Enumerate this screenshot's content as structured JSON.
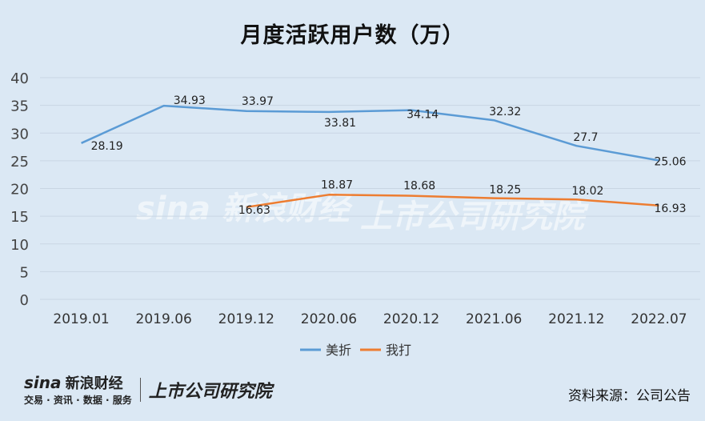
{
  "title": "月度活跃用户数（万）",
  "source": "资料来源：公司公告",
  "logo": {
    "sina": "sina",
    "sina_name": "新浪财经",
    "sina_tagline": "交易 · 资讯 · 数据 · 服务",
    "right": "上市公司研究院"
  },
  "colors": {
    "meizhe": "#5b9bd5",
    "wuda": "#ed7d31",
    "background": "#dbe8f4",
    "grid": "#c9d6e3"
  },
  "chart_data": {
    "type": "line",
    "title": "月度活跃用户数（万）",
    "categories": [
      "2019.01",
      "2019.06",
      "2019.12",
      "2020.06",
      "2020.12",
      "2021.06",
      "2021.12",
      "2022.07"
    ],
    "ylim": [
      0,
      40
    ],
    "yticks": [
      0,
      5,
      10,
      15,
      20,
      25,
      30,
      35,
      40
    ],
    "grid": true,
    "legend": "bottom",
    "series": [
      {
        "name": "美折",
        "color": "#5b9bd5",
        "values": [
          28.19,
          34.93,
          33.97,
          33.81,
          34.14,
          32.32,
          27.7,
          25.06
        ],
        "labels": [
          "28.19",
          "34.93",
          "33.97",
          "33.81",
          "34.14",
          "32.32",
          "27.7",
          "25.06"
        ]
      },
      {
        "name": "我打",
        "color": "#ed7d31",
        "values": [
          null,
          null,
          16.63,
          18.87,
          18.68,
          18.25,
          18.02,
          16.93
        ],
        "labels": [
          "",
          "",
          "16.63",
          "18.87",
          "18.68",
          "18.25",
          "18.02",
          "16.93"
        ]
      }
    ]
  }
}
